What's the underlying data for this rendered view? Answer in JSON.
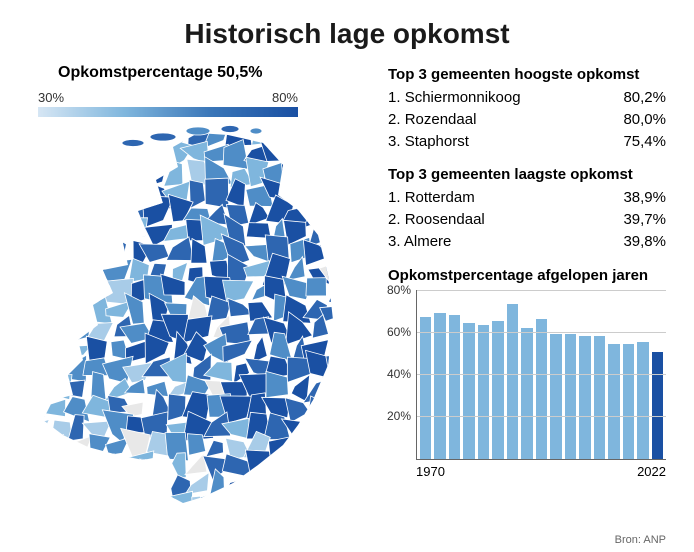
{
  "title": "Historisch lage opkomst",
  "source": "Bron: ANP",
  "legend": {
    "title": "Opkomstpercentage 50,5%",
    "min_label": "30%",
    "max_label": "80%",
    "gradient_colors": [
      "#d6e6f4",
      "#7fb6dd",
      "#3a76b8",
      "#1a50a3"
    ]
  },
  "map": {
    "type": "choropleth",
    "country": "Netherlands",
    "value_range": [
      30,
      80
    ],
    "border_color": "#ffffff",
    "missing_color": "#e8e8e8",
    "color_scale": [
      "#d6e6f4",
      "#a8cce8",
      "#7fb6dd",
      "#4f8dc7",
      "#2e66b1",
      "#1a50a3"
    ]
  },
  "top_high": {
    "header": "Top 3 gemeenten hoogste opkomst",
    "rows": [
      {
        "rank": "1.",
        "name": "Schiermonnikoog",
        "value": "80,2%"
      },
      {
        "rank": "2.",
        "name": "Rozendaal",
        "value": "80,0%"
      },
      {
        "rank": "3.",
        "name": "Staphorst",
        "value": "75,4%"
      }
    ]
  },
  "top_low": {
    "header": "Top 3 gemeenten laagste opkomst",
    "rows": [
      {
        "rank": "1.",
        "name": "Rotterdam",
        "value": "38,9%"
      },
      {
        "rank": "2.",
        "name": "Roosendaal",
        "value": "39,7%"
      },
      {
        "rank": "3.",
        "name": "Almere",
        "value": "39,8%"
      }
    ]
  },
  "bar_chart": {
    "type": "bar",
    "title": "Opkomstpercentage afgelopen jaren",
    "x_start_label": "1970",
    "x_end_label": "2022",
    "ylim": [
      0,
      80
    ],
    "y_ticks": [
      20,
      40,
      60,
      80
    ],
    "grid_color": "#cccccc",
    "axis_color": "#666666",
    "bar_color": "#7fb6dd",
    "highlight_color": "#1a50a3",
    "values": [
      67,
      69,
      68,
      64,
      63,
      65,
      73,
      62,
      66,
      59,
      59,
      58,
      58,
      54,
      54,
      55,
      50.5
    ],
    "highlight_index": 16
  }
}
